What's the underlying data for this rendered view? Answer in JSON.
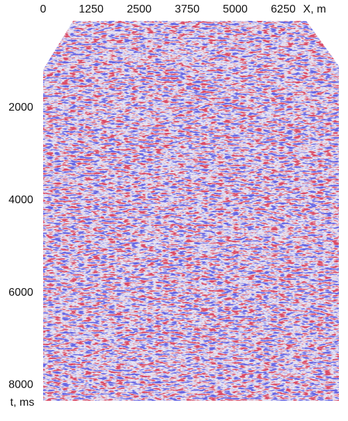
{
  "chart_data": {
    "type": "seismic-section",
    "xlabel": "X, m",
    "ylabel": "t, ms",
    "xlim": [
      0,
      7700
    ],
    "xticks": [
      0,
      1250,
      2500,
      3750,
      5000,
      6250
    ],
    "ylim": [
      0,
      8400
    ],
    "yticks": [
      2000,
      4000,
      6000,
      8000
    ],
    "colors": {
      "positive": "#e0141e",
      "negative": "#2a2ad8"
    }
  }
}
